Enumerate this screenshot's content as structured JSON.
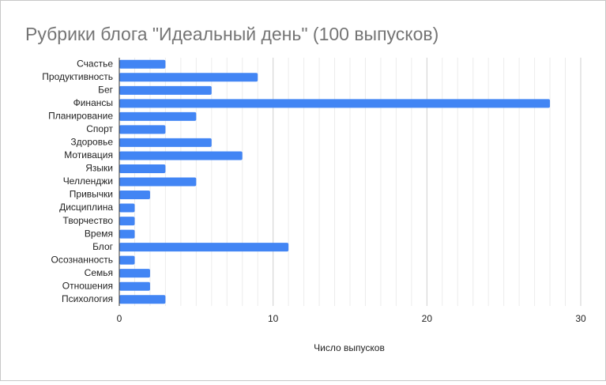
{
  "chart_data": {
    "type": "bar",
    "orientation": "horizontal",
    "title": "Рубрики блога \"Идеальный день\" (100 выпусков)",
    "x_axis_label": "Число выпусков",
    "categories": [
      "Счастье",
      "Продуктивность",
      "Бег",
      "Финансы",
      "Планирование",
      "Спорт",
      "Здоровье",
      "Мотивация",
      "Языки",
      "Челленджи",
      "Привычки",
      "Дисциплина",
      "Творчество",
      "Время",
      "Блог",
      "Осознанность",
      "Семья",
      "Отношения",
      "Психология"
    ],
    "values": [
      3,
      9,
      6,
      28,
      5,
      3,
      6,
      8,
      3,
      5,
      2,
      1,
      1,
      1,
      11,
      1,
      2,
      2,
      3
    ],
    "color": "#4285f4",
    "xlim": [
      0,
      30
    ],
    "xticks": [
      0,
      10,
      20,
      30
    ],
    "grid": true,
    "minor_grid": true
  }
}
